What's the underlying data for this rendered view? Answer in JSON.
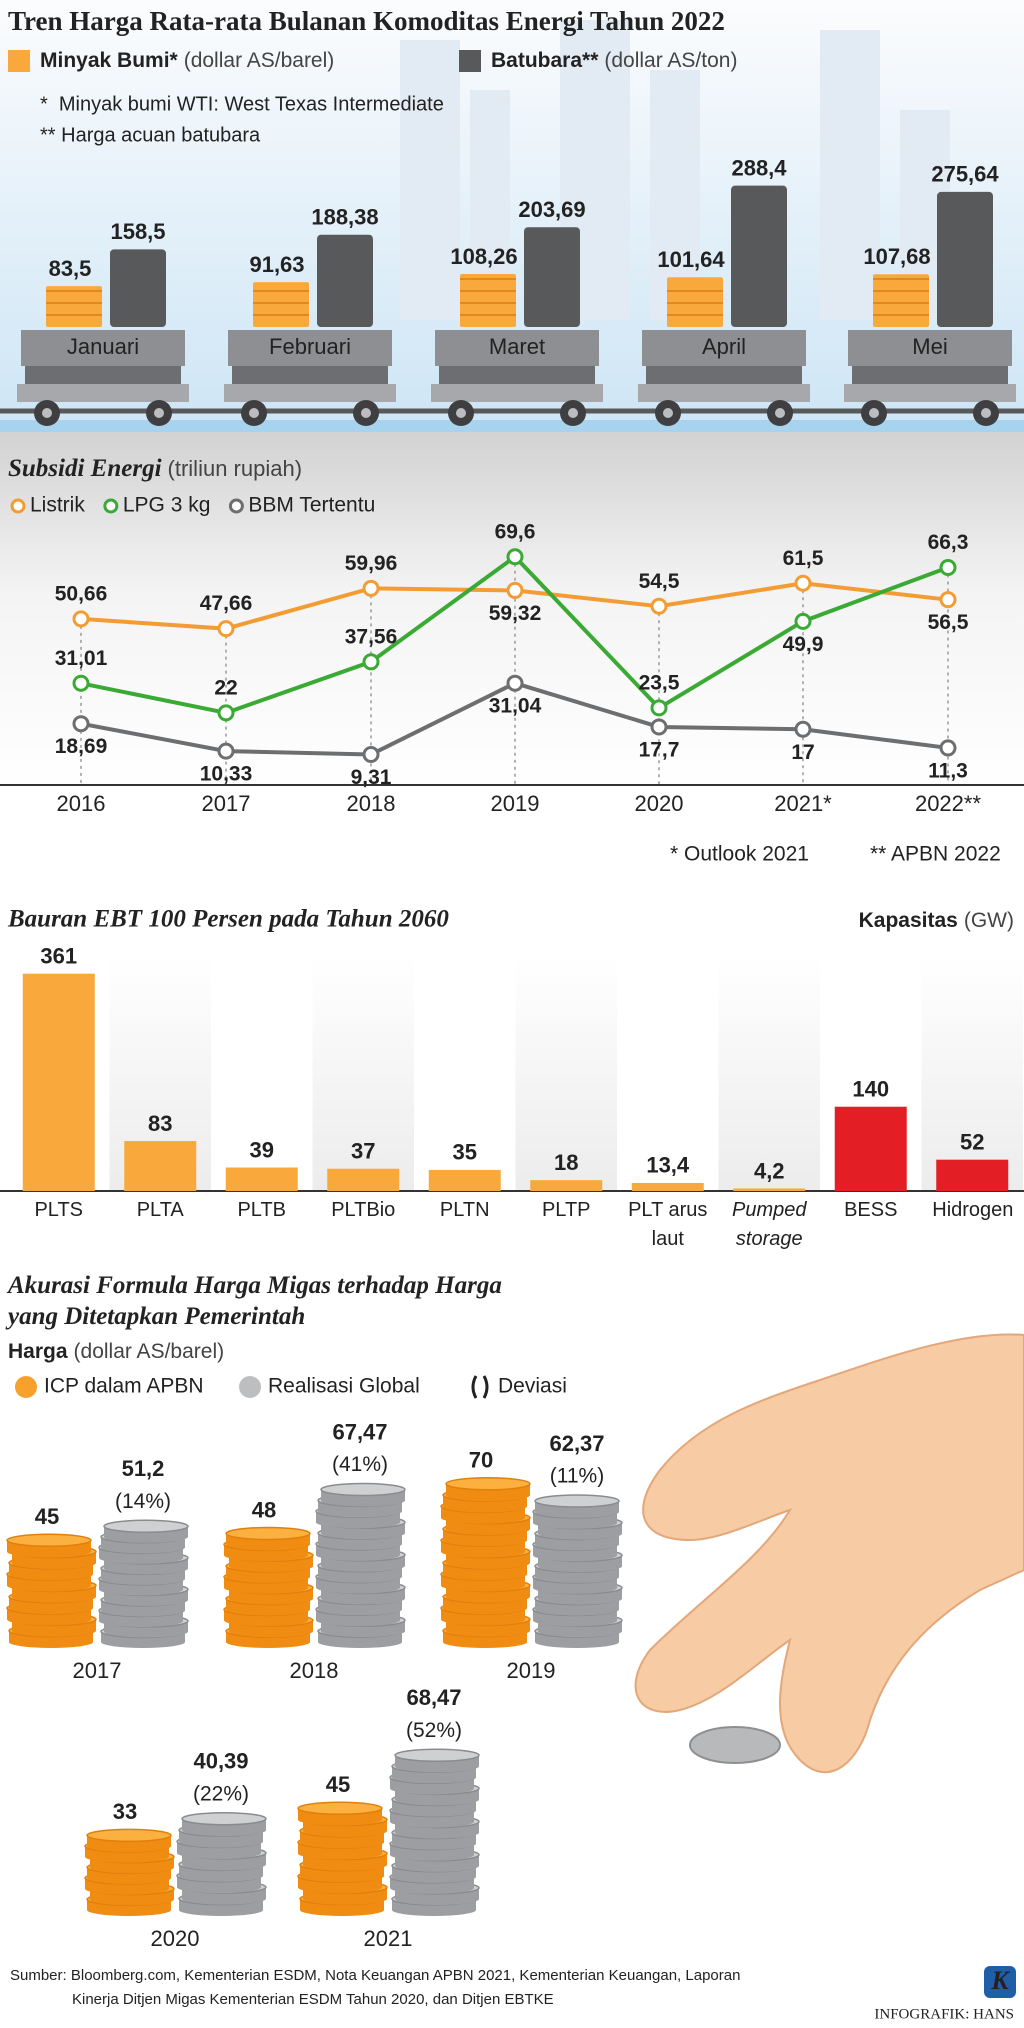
{
  "chart_data": [
    {
      "type": "bar",
      "title": "Tren Harga Rata-rata Bulanan Komoditas Energi Tahun 2022",
      "notes": [
        "*  Minyak bumi WTI: West Texas Intermediate",
        "** Harga acuan batubara"
      ],
      "categories": [
        "Januari",
        "Februari",
        "Maret",
        "April",
        "Mei"
      ],
      "series": [
        {
          "name": "Minyak Bumi*",
          "unit": "(dollar AS/barel)",
          "color": "#f9a93c",
          "values": [
            83.5,
            91.63,
            108.26,
            101.64,
            107.68
          ],
          "value_labels": [
            "83,5",
            "91,63",
            "108,26",
            "101,64",
            "107,68"
          ]
        },
        {
          "name": "Batubara**",
          "unit": "(dollar AS/ton)",
          "color": "#58595b",
          "values": [
            158.5,
            188.38,
            203.69,
            288.4,
            275.64
          ],
          "value_labels": [
            "158,5",
            "188,38",
            "203,69",
            "288,4",
            "275,64"
          ]
        }
      ]
    },
    {
      "type": "line",
      "title": "Subsidi Energi",
      "subtitle": "(triliun rupiah)",
      "categories": [
        "2016",
        "2017",
        "2018",
        "2019",
        "2020",
        "2021*",
        "2022**"
      ],
      "series": [
        {
          "name": "Listrik",
          "color": "#f39c33",
          "values": [
            50.66,
            47.66,
            59.96,
            59.32,
            54.5,
            61.5,
            56.5
          ],
          "value_labels": [
            "50,66",
            "47,66",
            "59,96",
            "59,32",
            "54,5",
            "61,5",
            "56,5"
          ]
        },
        {
          "name": "LPG 3 kg",
          "color": "#3aaa35",
          "values": [
            31.01,
            22,
            37.56,
            69.6,
            23.5,
            49.9,
            66.3
          ],
          "value_labels": [
            "31,01",
            "22",
            "37,56",
            "69,6",
            "23,5",
            "49,9",
            "66,3"
          ]
        },
        {
          "name": "BBM Tertentu",
          "color": "#6d6e70",
          "values": [
            18.69,
            10.33,
            9.31,
            31.04,
            17.7,
            17,
            11.3
          ],
          "value_labels": [
            "18,69",
            "10,33",
            "9,31",
            "31,04",
            "17,7",
            "17",
            "11,3"
          ]
        }
      ],
      "notes": [
        "* Outlook 2021",
        "** APBN 2022"
      ]
    },
    {
      "type": "bar",
      "title": "Bauran EBT 100 Persen pada Tahun 2060",
      "value_axis_label": "Kapasitas",
      "unit": "(GW)",
      "categories": [
        "PLTS",
        "PLTA",
        "PLTB",
        "PLTBio",
        "PLTN",
        "PLTP",
        "PLT arus laut",
        "Pumped storage",
        "BESS",
        "Hidrogen"
      ],
      "values": [
        361,
        83,
        39,
        37,
        35,
        18,
        13.4,
        4.2,
        140,
        52
      ],
      "value_labels": [
        "361",
        "83",
        "39",
        "37",
        "35",
        "18",
        "13,4",
        "4,2",
        "140",
        "52"
      ],
      "colors": [
        "#f9a93c",
        "#f9a93c",
        "#f9a93c",
        "#f9a93c",
        "#f9a93c",
        "#f9a93c",
        "#f9a93c",
        "#f9a93c",
        "#e31e24",
        "#e31e24"
      ]
    },
    {
      "type": "pictogram",
      "title": "Akurasi Formula Harga Migas terhadap Harga yang Ditetapkan Pemerintah",
      "value_axis_label": "Harga",
      "unit": "(dollar AS/barel)",
      "categories": [
        "2017",
        "2018",
        "2019",
        "2020",
        "2021"
      ],
      "series": [
        {
          "name": "ICP dalam APBN",
          "color": "#f7a12c",
          "values": [
            45,
            48,
            70,
            33,
            45
          ]
        },
        {
          "name": "Realisasi Global",
          "color": "#bdbec0",
          "values": [
            51.2,
            67.47,
            62.37,
            40.39,
            68.47
          ],
          "value_labels": [
            "51,2",
            "67,47",
            "62,37",
            "40,39",
            "68,47"
          ]
        },
        {
          "name": "Deviasi",
          "values": [
            14,
            41,
            11,
            22,
            52
          ],
          "value_labels": [
            "(14%)",
            "(41%)",
            "(11%)",
            "(22%)",
            "(52%)"
          ]
        }
      ]
    }
  ],
  "source": "Sumber: Bloomberg.com, Kementerian ESDM, Nota Keuangan APBN 2021, Kementerian Keuangan, Laporan Kinerja Ditjen Migas Kementerian ESDM Tahun 2020, dan Ditjen EBTKE",
  "credit": "INFOGRAFIK: HANS",
  "logo": "K"
}
